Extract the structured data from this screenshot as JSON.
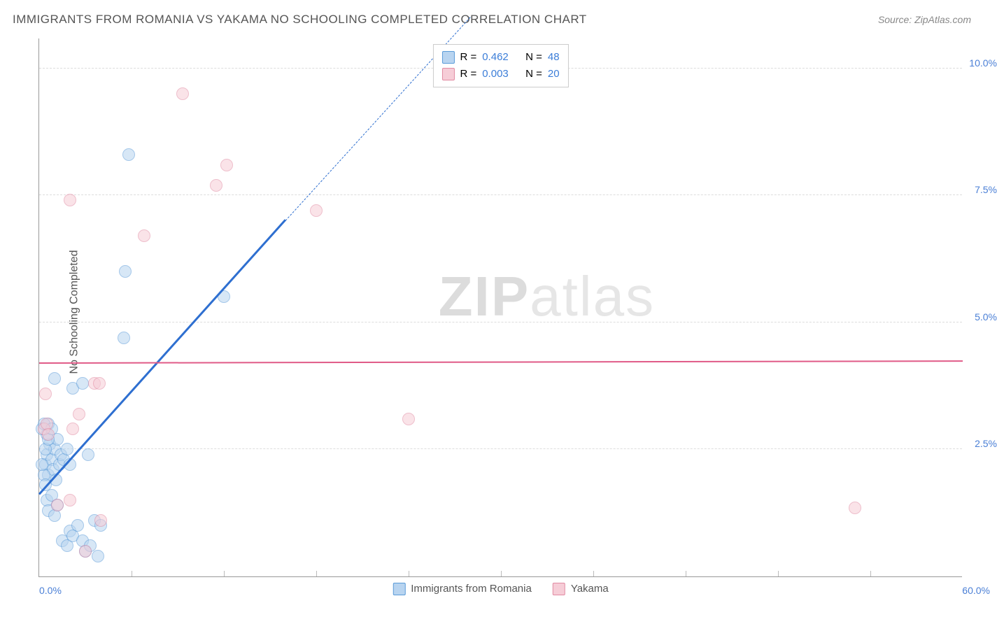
{
  "title": "IMMIGRANTS FROM ROMANIA VS YAKAMA NO SCHOOLING COMPLETED CORRELATION CHART",
  "source_label": "Source: ZipAtlas.com",
  "y_axis_label": "No Schooling Completed",
  "watermark": {
    "part1": "ZIP",
    "part2": "atlas"
  },
  "chart": {
    "type": "scatter",
    "xlim": [
      0,
      60
    ],
    "ylim": [
      0,
      10.6
    ],
    "x_min_label": "0.0%",
    "x_max_label": "60.0%",
    "y_ticks": [
      {
        "v": 2.5,
        "label": "2.5%"
      },
      {
        "v": 5.0,
        "label": "5.0%"
      },
      {
        "v": 7.5,
        "label": "7.5%"
      },
      {
        "v": 10.0,
        "label": "10.0%"
      }
    ],
    "x_tick_positions": [
      6,
      12,
      18,
      24,
      30,
      36,
      42,
      48,
      54
    ],
    "grid_color": "#dddddd",
    "background_color": "#ffffff",
    "marker_radius": 9,
    "marker_stroke_width": 1,
    "series": [
      {
        "name": "Immigrants from Romania",
        "fill": "#b8d4f0",
        "stroke": "#5a9bd8",
        "fill_opacity": 0.55,
        "r_value": "0.462",
        "n_value": "48",
        "trend": {
          "x1": 0,
          "y1": 1.6,
          "x2": 16,
          "y2": 7.0,
          "color": "#2e6fd0",
          "width": 3,
          "dash_extend_to": [
            28,
            11
          ]
        },
        "points": [
          [
            0.4,
            2.2
          ],
          [
            0.5,
            2.4
          ],
          [
            0.6,
            2.0
          ],
          [
            0.7,
            2.6
          ],
          [
            0.8,
            2.3
          ],
          [
            0.9,
            2.1
          ],
          [
            1.0,
            2.5
          ],
          [
            1.1,
            1.9
          ],
          [
            1.2,
            2.7
          ],
          [
            1.3,
            2.2
          ],
          [
            0.5,
            1.5
          ],
          [
            0.6,
            1.3
          ],
          [
            0.8,
            1.6
          ],
          [
            1.0,
            1.2
          ],
          [
            1.2,
            1.4
          ],
          [
            1.5,
            0.7
          ],
          [
            1.8,
            0.6
          ],
          [
            2.0,
            0.9
          ],
          [
            2.2,
            0.8
          ],
          [
            2.5,
            1.0
          ],
          [
            2.8,
            0.7
          ],
          [
            3.0,
            0.5
          ],
          [
            3.3,
            0.6
          ],
          [
            3.6,
            1.1
          ],
          [
            3.8,
            0.4
          ],
          [
            4.0,
            1.0
          ],
          [
            1.4,
            2.4
          ],
          [
            1.6,
            2.3
          ],
          [
            1.8,
            2.5
          ],
          [
            2.0,
            2.2
          ],
          [
            0.3,
            2.0
          ],
          [
            0.4,
            1.8
          ],
          [
            0.5,
            2.8
          ],
          [
            0.6,
            3.0
          ],
          [
            2.2,
            3.7
          ],
          [
            2.8,
            3.8
          ],
          [
            3.2,
            2.4
          ],
          [
            1.0,
            3.9
          ],
          [
            5.5,
            4.7
          ],
          [
            5.8,
            8.3
          ],
          [
            5.6,
            6.0
          ],
          [
            12.0,
            5.5
          ],
          [
            0.2,
            2.9
          ],
          [
            0.3,
            3.0
          ],
          [
            0.4,
            2.5
          ],
          [
            0.6,
            2.7
          ],
          [
            0.8,
            2.9
          ],
          [
            0.2,
            2.2
          ]
        ]
      },
      {
        "name": "Yakama",
        "fill": "#f6cdd7",
        "stroke": "#e18aa2",
        "fill_opacity": 0.55,
        "r_value": "0.003",
        "n_value": "20",
        "trend": {
          "x1": 0,
          "y1": 4.18,
          "x2": 60,
          "y2": 4.22,
          "color": "#e05a87",
          "width": 2
        },
        "points": [
          [
            0.3,
            2.9
          ],
          [
            0.5,
            3.0
          ],
          [
            1.2,
            1.4
          ],
          [
            2.0,
            1.5
          ],
          [
            2.2,
            2.9
          ],
          [
            2.6,
            3.2
          ],
          [
            3.6,
            3.8
          ],
          [
            3.9,
            3.8
          ],
          [
            2.0,
            7.4
          ],
          [
            6.8,
            6.7
          ],
          [
            9.3,
            9.5
          ],
          [
            11.5,
            7.7
          ],
          [
            12.2,
            8.1
          ],
          [
            18.0,
            7.2
          ],
          [
            3.0,
            0.5
          ],
          [
            4.0,
            1.1
          ],
          [
            24.0,
            3.1
          ],
          [
            53.0,
            1.35
          ],
          [
            0.4,
            3.6
          ],
          [
            0.6,
            2.8
          ]
        ]
      }
    ]
  },
  "legend_top": {
    "r_label": "R =",
    "n_label": "N ="
  }
}
